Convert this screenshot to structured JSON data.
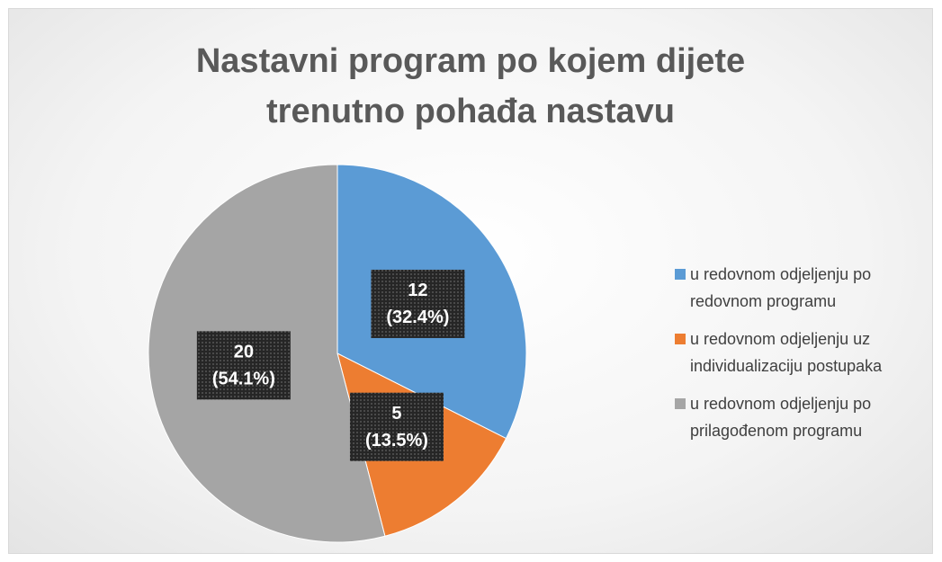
{
  "chart_data": {
    "type": "pie",
    "title": "Nastavni program po kojem dijete trenutno pohađa nastavu",
    "categories": [
      "u redovnom odjeljenju po redovnom programu",
      "u redovnom odjeljenju uz individualizaciju postupaka",
      "u redovnom odjeljenju po prilagođenom programu"
    ],
    "values": [
      12,
      5,
      20
    ],
    "percent_labels": [
      "(32.4%)",
      "(13.5%)",
      "(54.1%)"
    ],
    "colors": [
      "#5b9bd5",
      "#ed7d31",
      "#a5a5a5"
    ],
    "legend": "right"
  }
}
